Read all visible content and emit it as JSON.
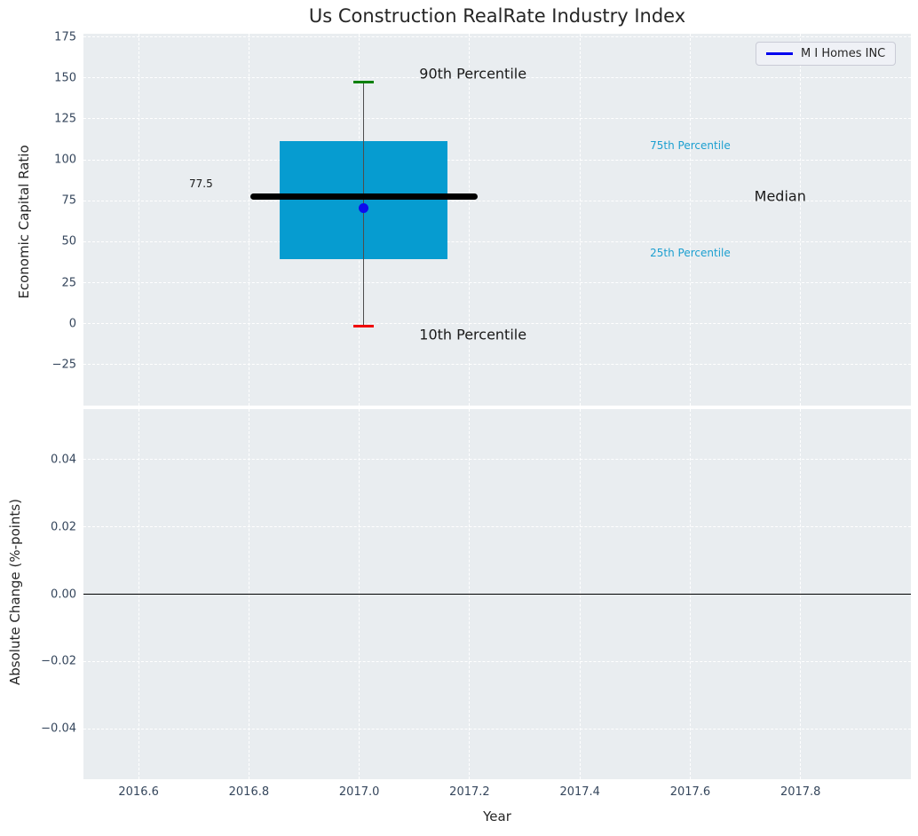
{
  "chart_data": {
    "type": "boxplot",
    "title": "Us Construction RealRate Industry Index",
    "xlabel": "Year",
    "xlim": [
      2016.5,
      2018.0
    ],
    "xticks": [
      2016.6,
      2016.8,
      2017.0,
      2017.2,
      2017.4,
      2017.6,
      2017.8
    ],
    "xtick_labels": [
      "2016.6",
      "2016.8",
      "2017.0",
      "2017.2",
      "2017.4",
      "2017.6",
      "2017.8"
    ],
    "grid": "dashed-white",
    "legend": {
      "label": "M I Homes INC",
      "position": "upper right"
    },
    "top_panel": {
      "ylabel": "Economic Capital Ratio",
      "ylim": [
        -50,
        177
      ],
      "yticks": [
        175,
        150,
        125,
        100,
        75,
        50,
        25,
        0,
        -25
      ],
      "ytick_labels": [
        "175",
        "150",
        "125",
        "100",
        "75",
        "50",
        "25",
        "0",
        "−25"
      ],
      "box": {
        "x": 2017.008,
        "p10": -1.5,
        "p25": 39.5,
        "median": 77.5,
        "p75": 111.5,
        "p90": 147.5,
        "box_half_width": 0.152,
        "median_line_half_width": 0.206,
        "cap_half_width": 0.0185
      },
      "company_point": {
        "x": 2017.008,
        "y": 70.3
      },
      "annotations": [
        {
          "text": "90th Percentile",
          "x": 2017.206,
          "y": 152.5,
          "size": 16,
          "color": "#1a1a1a"
        },
        {
          "text": "10th Percentile",
          "x": 2017.206,
          "y": -6.5,
          "size": 16,
          "color": "#1a1a1a"
        },
        {
          "text": "Median",
          "x": 2017.763,
          "y": 77.7,
          "size": 16,
          "color": "#1a1a1a"
        },
        {
          "text": "77.5",
          "x": 2016.713,
          "y": 85.5,
          "size": 12,
          "color": "#1a1a1a"
        },
        {
          "text": "75th Percentile",
          "x": 2017.6,
          "y": 108.6,
          "size": 12,
          "color": "#1b9fd0"
        },
        {
          "text": "25th Percentile",
          "x": 2017.6,
          "y": 43.3,
          "size": 12,
          "color": "#1b9fd0"
        }
      ]
    },
    "bottom_panel": {
      "ylabel": "Absolute Change (%-points)",
      "ylim": [
        -0.055,
        0.055
      ],
      "yticks": [
        0.04,
        0.02,
        0.0,
        -0.02,
        -0.04
      ],
      "ytick_labels": [
        "0.04",
        "0.02",
        "0.00",
        "−0.02",
        "−0.04"
      ],
      "zero_line": 0.0
    },
    "colors": {
      "axes_bg": "#e9edf0",
      "grid": "#ffffff",
      "box_fill": "#069cd0",
      "median_line": "#000000",
      "whisker": "#4d4d4d",
      "p90_cap": "#008000",
      "p10_cap": "#f00000",
      "company_point": "#0d0dee",
      "zero_line": "#000000",
      "tick_text": "#35465c",
      "title_text": "#262626"
    }
  }
}
